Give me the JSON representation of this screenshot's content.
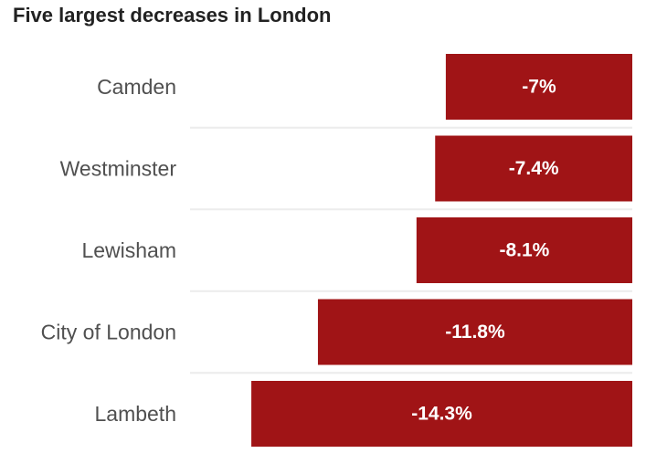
{
  "colors": {
    "bar": "#a01416",
    "separator": "#ececec",
    "label": "#505050",
    "title": "#222222"
  },
  "chart_data": {
    "type": "bar",
    "orientation": "horizontal",
    "title": "Five largest decreases in London",
    "categories": [
      "Camden",
      "Westminster",
      "Lewisham",
      "City of London",
      "Lambeth"
    ],
    "values": [
      -7,
      -7.4,
      -8.1,
      -11.8,
      -14.3
    ],
    "value_labels": [
      "-7%",
      "-7.4%",
      "-8.1%",
      "-11.8%",
      "-14.3%"
    ],
    "unit": "%",
    "xlim": [
      -16.6,
      0
    ],
    "grid": false,
    "legend": "none"
  }
}
